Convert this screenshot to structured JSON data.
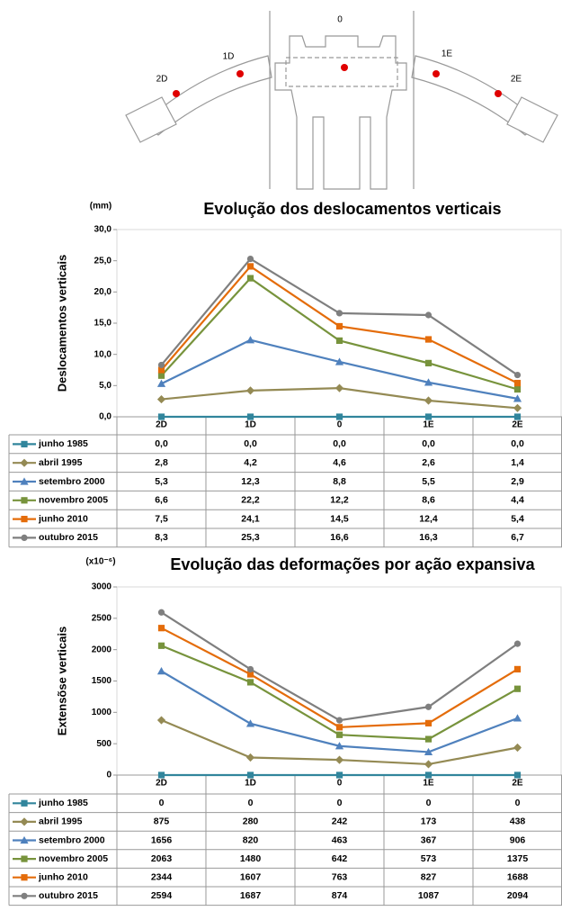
{
  "diagram": {
    "labels": [
      "0",
      "1D",
      "2D",
      "1E",
      "2E"
    ]
  },
  "chart_data": [
    {
      "type": "line",
      "title": "Evolução dos deslocamentos verticais",
      "unit": "(mm)",
      "y_label": "Deslocamentos verticais",
      "categories": [
        "2D",
        "1D",
        "0",
        "1E",
        "2E"
      ],
      "grid": false,
      "ylim": [
        0,
        30
      ],
      "yticks": [
        {
          "value": 0,
          "label": "0,0"
        },
        {
          "value": 5,
          "label": "5,0"
        },
        {
          "value": 10,
          "label": "10,0"
        },
        {
          "value": 15,
          "label": "15,0"
        },
        {
          "value": 20,
          "label": "20,0"
        },
        {
          "value": 25,
          "label": "25,0"
        },
        {
          "value": 30,
          "label": "30,0"
        }
      ],
      "series": [
        {
          "name": "junho 1985",
          "color": "#31859c",
          "marker": "square",
          "values": [
            0,
            0,
            0,
            0,
            0
          ],
          "value_labels": [
            "0,0",
            "0,0",
            "0,0",
            "0,0",
            "0,0"
          ]
        },
        {
          "name": "abril 1995",
          "color": "#948a54",
          "marker": "diamond",
          "values": [
            2.8,
            4.2,
            4.6,
            2.6,
            1.4
          ],
          "value_labels": [
            "2,8",
            "4,2",
            "4,6",
            "2,6",
            "1,4"
          ]
        },
        {
          "name": "setembro 2000",
          "color": "#4f81bd",
          "marker": "triangle",
          "values": [
            5.3,
            12.3,
            8.8,
            5.5,
            2.9
          ],
          "value_labels": [
            "5,3",
            "12,3",
            "8,8",
            "5,5",
            "2,9"
          ]
        },
        {
          "name": "novembro 2005",
          "color": "#77933c",
          "marker": "square",
          "values": [
            6.6,
            22.2,
            12.2,
            8.6,
            4.4
          ],
          "value_labels": [
            "6,6",
            "22,2",
            "12,2",
            "8,6",
            "4,4"
          ]
        },
        {
          "name": "junho 2010",
          "color": "#e46c0a",
          "marker": "square",
          "values": [
            7.5,
            24.1,
            14.5,
            12.4,
            5.4
          ],
          "value_labels": [
            "7,5",
            "24,1",
            "14,5",
            "12,4",
            "5,4"
          ]
        },
        {
          "name": "outubro 2015",
          "color": "#7f7f7f",
          "marker": "circle",
          "values": [
            8.3,
            25.3,
            16.6,
            16.3,
            6.7
          ],
          "value_labels": [
            "8,3",
            "25,3",
            "16,6",
            "16,3",
            "6,7"
          ]
        }
      ]
    },
    {
      "type": "line",
      "title": "Evolução das deformações por ação expansiva",
      "unit": "(x10⁻⁶)",
      "y_label": "Extensõse verticais",
      "categories": [
        "2D",
        "1D",
        "0",
        "1E",
        "2E"
      ],
      "grid": false,
      "ylim": [
        0,
        3000
      ],
      "yticks": [
        0,
        500,
        1000,
        1500,
        2000,
        2500,
        3000
      ],
      "series": [
        {
          "name": "junho 1985",
          "color": "#31859c",
          "marker": "square",
          "values": [
            0,
            0,
            0,
            0,
            0
          ]
        },
        {
          "name": "abril 1995",
          "color": "#948a54",
          "marker": "diamond",
          "values": [
            875,
            280,
            242,
            173,
            438
          ]
        },
        {
          "name": "setembro 2000",
          "color": "#4f81bd",
          "marker": "triangle",
          "values": [
            1656,
            820,
            463,
            367,
            906
          ]
        },
        {
          "name": "novembro 2005",
          "color": "#77933c",
          "marker": "square",
          "values": [
            2063,
            1480,
            642,
            573,
            1375
          ]
        },
        {
          "name": "junho 2010",
          "color": "#e46c0a",
          "marker": "square",
          "values": [
            2344,
            1607,
            763,
            827,
            1688
          ]
        },
        {
          "name": "outubro 2015",
          "color": "#7f7f7f",
          "marker": "circle",
          "values": [
            2594,
            1687,
            874,
            1087,
            2094
          ]
        }
      ]
    }
  ]
}
